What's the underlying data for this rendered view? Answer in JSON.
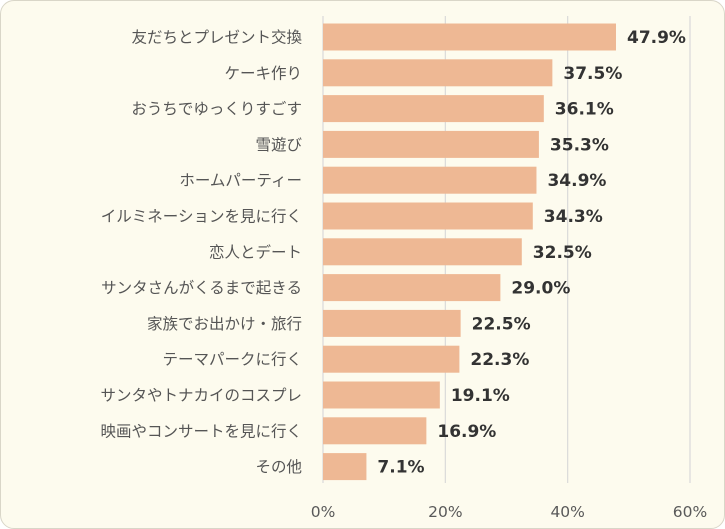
{
  "chart_data": {
    "type": "bar",
    "orientation": "horizontal",
    "categories": [
      "友だちとプレゼント交換",
      "ケーキ作り",
      "おうちでゆっくりすごす",
      "雪遊び",
      "ホームパーティー",
      "イルミネーションを見に行く",
      "恋人とデート",
      "サンタさんがくるまで起きる",
      "家族でお出かけ・旅行",
      "テーマパークに行く",
      "サンタやトナカイのコスプレ",
      "映画やコンサートを見に行く",
      "その他"
    ],
    "values": [
      47.9,
      37.5,
      36.1,
      35.3,
      34.9,
      34.3,
      32.5,
      29.0,
      22.5,
      22.3,
      19.1,
      16.9,
      7.1
    ],
    "value_labels": [
      "47.9%",
      "37.5%",
      "36.1%",
      "35.3%",
      "34.9%",
      "34.3%",
      "32.5%",
      "29.0%",
      "22.5%",
      "22.3%",
      "19.1%",
      "16.9%",
      "7.1%"
    ],
    "xlim": [
      0,
      60
    ],
    "x_ticks": [
      0,
      20,
      40,
      60
    ],
    "x_tick_labels": [
      "0%",
      "20%",
      "40%",
      "60%"
    ],
    "grid": "vertical",
    "bar_color": "#eeb894",
    "background_color": "#fdfbee",
    "grid_color": "#d9d9d9",
    "title": "",
    "xlabel": "",
    "ylabel": ""
  }
}
